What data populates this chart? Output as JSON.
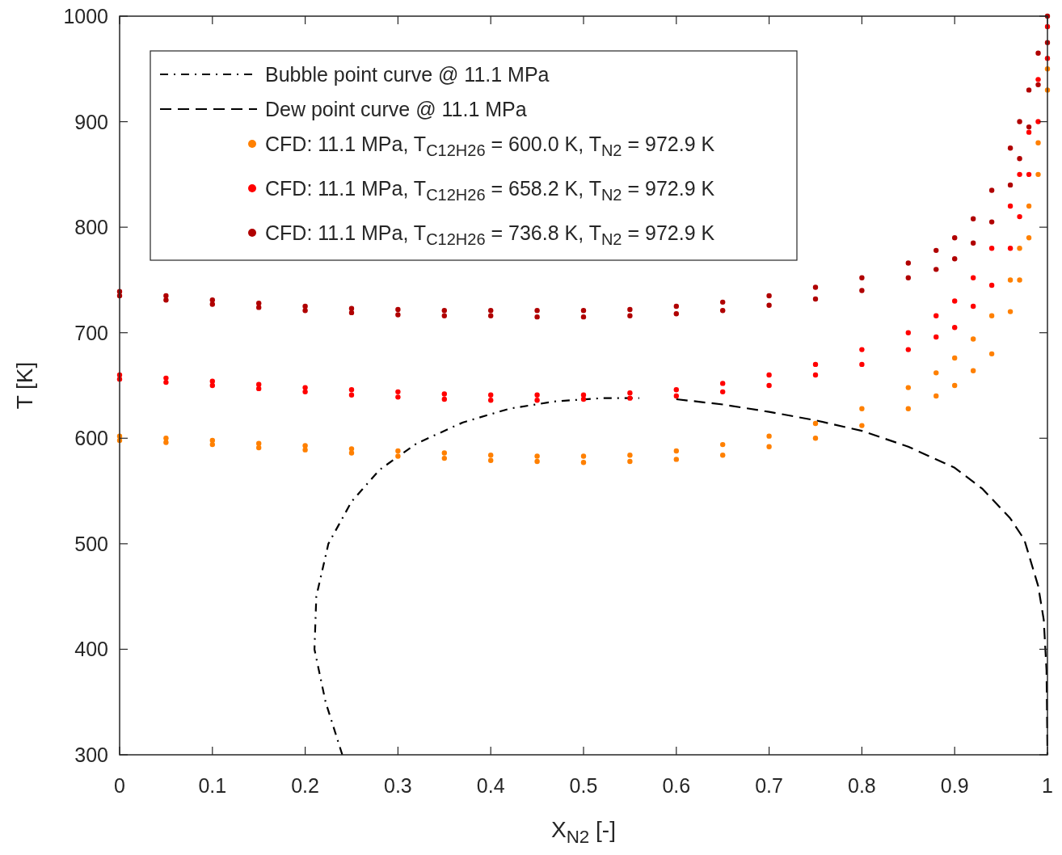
{
  "chart_data": {
    "type": "scatter",
    "xlabel": "X$_{N2}$ [-]",
    "ylabel": "T [K]",
    "xlim": [
      0,
      1
    ],
    "ylim": [
      300,
      1000
    ],
    "xticks": [
      0,
      0.1,
      0.2,
      0.3,
      0.4,
      0.5,
      0.6,
      0.7,
      0.8,
      0.9,
      1
    ],
    "yticks": [
      300,
      400,
      500,
      600,
      700,
      800,
      900,
      1000
    ],
    "grid": false,
    "legend": "top left",
    "series": [
      {
        "name": "Bubble point curve @ 11.1 MPa",
        "type": "line",
        "color": "#000000",
        "line_style": "dashdot",
        "marker": "none",
        "x": [
          0.24,
          0.222,
          0.21,
          0.212,
          0.225,
          0.25,
          0.28,
          0.32,
          0.37,
          0.42,
          0.47,
          0.52,
          0.56
        ],
        "values": [
          300,
          350,
          400,
          450,
          500,
          540,
          570,
          595,
          615,
          628,
          635,
          638,
          638
        ]
      },
      {
        "name": "Dew point curve @ 11.1 MPa",
        "type": "line",
        "color": "#000000",
        "line_style": "dashed",
        "marker": "none",
        "x": [
          0.6,
          0.65,
          0.7,
          0.75,
          0.8,
          0.85,
          0.9,
          0.93,
          0.96,
          0.975,
          0.99,
          0.996,
          0.999,
          1.0
        ],
        "values": [
          637,
          632,
          625,
          617,
          607,
          592,
          572,
          552,
          524,
          504,
          460,
          428,
          380,
          300
        ]
      },
      {
        "name": "CFD: 11.1 MPa, T$_{C12H26}$ = 600.0 K, T$_{N2}$ = 972.9 K",
        "color": "#ff8000",
        "marker": "circle",
        "x": [
          0,
          0,
          0.05,
          0.05,
          0.1,
          0.1,
          0.15,
          0.15,
          0.2,
          0.2,
          0.25,
          0.25,
          0.3,
          0.3,
          0.35,
          0.35,
          0.4,
          0.4,
          0.45,
          0.45,
          0.5,
          0.5,
          0.55,
          0.55,
          0.6,
          0.6,
          0.65,
          0.65,
          0.7,
          0.7,
          0.75,
          0.75,
          0.8,
          0.8,
          0.85,
          0.85,
          0.88,
          0.88,
          0.9,
          0.9,
          0.92,
          0.92,
          0.94,
          0.94,
          0.96,
          0.96,
          0.97,
          0.97,
          0.98,
          0.98,
          0.99,
          0.99,
          1.0,
          1.0
        ],
        "values": [
          602,
          598,
          600,
          596,
          598,
          594,
          595,
          591,
          593,
          589,
          590,
          586,
          588,
          583,
          586,
          581,
          584,
          579,
          583,
          578,
          583,
          577,
          584,
          578,
          588,
          580,
          594,
          584,
          602,
          592,
          614,
          600,
          628,
          612,
          648,
          628,
          662,
          640,
          676,
          650,
          694,
          664,
          716,
          680,
          750,
          720,
          780,
          750,
          820,
          790,
          880,
          850,
          950,
          930
        ]
      },
      {
        "name": "CFD: 11.1 MPa, T$_{C12H26}$ = 658.2 K, T$_{N2}$ = 972.9 K",
        "color": "#ff0000",
        "marker": "circle",
        "x": [
          0,
          0,
          0.05,
          0.05,
          0.1,
          0.1,
          0.15,
          0.15,
          0.2,
          0.2,
          0.25,
          0.25,
          0.3,
          0.3,
          0.35,
          0.35,
          0.4,
          0.4,
          0.45,
          0.45,
          0.5,
          0.5,
          0.55,
          0.55,
          0.6,
          0.6,
          0.65,
          0.65,
          0.7,
          0.7,
          0.75,
          0.75,
          0.8,
          0.8,
          0.85,
          0.85,
          0.88,
          0.88,
          0.9,
          0.9,
          0.92,
          0.92,
          0.94,
          0.94,
          0.96,
          0.96,
          0.97,
          0.97,
          0.98,
          0.98,
          0.99,
          0.99,
          1.0,
          1.0
        ],
        "values": [
          660,
          656,
          657,
          653,
          654,
          650,
          651,
          647,
          648,
          644,
          646,
          641,
          644,
          639,
          642,
          637,
          641,
          636,
          641,
          636,
          641,
          637,
          643,
          638,
          646,
          640,
          652,
          644,
          660,
          650,
          670,
          660,
          684,
          670,
          700,
          684,
          716,
          696,
          730,
          705,
          752,
          725,
          780,
          745,
          820,
          780,
          850,
          810,
          890,
          850,
          940,
          900,
          990,
          960
        ]
      },
      {
        "name": "CFD: 11.1 MPa, T$_{C12H26}$ = 736.8 K, T$_{N2}$ = 972.9 K",
        "color": "#b00000",
        "marker": "circle",
        "x": [
          0,
          0,
          0.05,
          0.05,
          0.1,
          0.1,
          0.15,
          0.15,
          0.2,
          0.2,
          0.25,
          0.25,
          0.3,
          0.3,
          0.35,
          0.35,
          0.4,
          0.4,
          0.45,
          0.45,
          0.5,
          0.5,
          0.55,
          0.55,
          0.6,
          0.6,
          0.65,
          0.65,
          0.7,
          0.7,
          0.75,
          0.75,
          0.8,
          0.8,
          0.85,
          0.85,
          0.88,
          0.88,
          0.9,
          0.9,
          0.92,
          0.92,
          0.94,
          0.94,
          0.96,
          0.96,
          0.97,
          0.97,
          0.98,
          0.98,
          0.99,
          0.99,
          1.0,
          1.0
        ],
        "values": [
          739,
          735,
          735,
          731,
          731,
          727,
          728,
          724,
          725,
          721,
          723,
          719,
          722,
          717,
          721,
          716,
          721,
          716,
          721,
          715,
          721,
          715,
          722,
          716,
          725,
          718,
          729,
          721,
          735,
          726,
          743,
          732,
          752,
          740,
          766,
          752,
          778,
          760,
          790,
          770,
          808,
          785,
          835,
          805,
          875,
          840,
          900,
          865,
          930,
          895,
          965,
          935,
          1000,
          975
        ]
      }
    ]
  }
}
